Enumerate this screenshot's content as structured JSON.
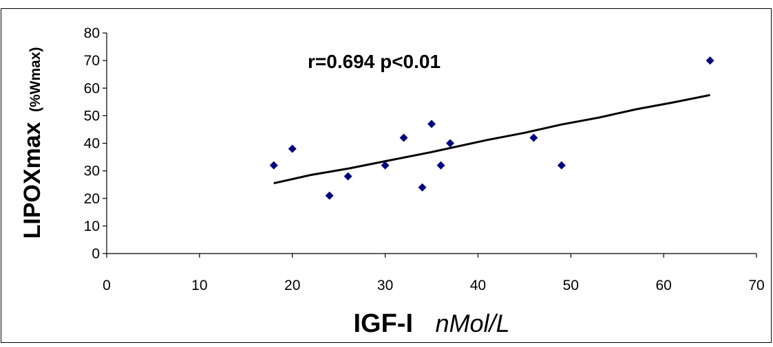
{
  "chart_data": {
    "type": "scatter",
    "title": "",
    "annotation": "r=0.694  p<0.01",
    "xlabel": "IGF-I",
    "xunit": "nMol/L",
    "ylabel": "LIPOXmax",
    "yunit": "(%Wmax)",
    "xlim": [
      0,
      70
    ],
    "ylim": [
      0,
      80
    ],
    "xticks": [
      0,
      10,
      20,
      30,
      40,
      50,
      60,
      70
    ],
    "yticks": [
      0,
      10,
      20,
      30,
      40,
      50,
      60,
      70,
      80
    ],
    "grid": false,
    "legend": "none",
    "marker": "diamond",
    "marker_color": "#00007f",
    "trendline_color": "#000000",
    "series": [
      {
        "x": [
          18,
          20,
          24,
          26,
          30,
          32,
          34,
          35,
          36,
          37,
          46,
          49,
          65
        ],
        "y": [
          32,
          38,
          21,
          28,
          32,
          42,
          24,
          47,
          32,
          40,
          42,
          32,
          70
        ]
      }
    ],
    "trendline": {
      "x": [
        18,
        22,
        26,
        30,
        35,
        41,
        45,
        49,
        53,
        57,
        61,
        65
      ],
      "y": [
        25.5,
        28.5,
        30.8,
        33.5,
        36.8,
        41.2,
        43.8,
        46.8,
        49.3,
        52.3,
        54.8,
        57.5
      ]
    }
  }
}
